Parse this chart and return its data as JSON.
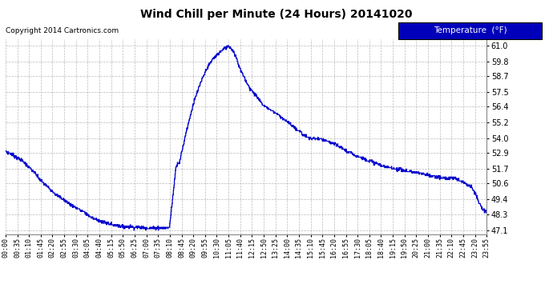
{
  "title": "Wind Chill per Minute (24 Hours) 20141020",
  "copyright": "Copyright 2014 Cartronics.com",
  "legend_label": "Temperature  (°F)",
  "line_color": "#0000cc",
  "background_color": "#ffffff",
  "grid_color": "#aaaaaa",
  "legend_bg": "#0000bb",
  "legend_fg": "#ffffff",
  "yticks": [
    47.1,
    48.3,
    49.4,
    50.6,
    51.7,
    52.9,
    54.0,
    55.2,
    56.4,
    57.5,
    58.7,
    59.8,
    61.0
  ],
  "ymin": 46.8,
  "ymax": 61.5,
  "xtick_labels": [
    "00:00",
    "00:35",
    "01:10",
    "01:45",
    "02:20",
    "02:55",
    "03:30",
    "04:05",
    "04:40",
    "05:15",
    "05:50",
    "06:25",
    "07:00",
    "07:35",
    "08:10",
    "08:45",
    "09:20",
    "09:55",
    "10:30",
    "11:05",
    "11:40",
    "12:15",
    "12:50",
    "13:25",
    "14:00",
    "14:35",
    "15:10",
    "15:45",
    "16:20",
    "16:55",
    "17:30",
    "18:05",
    "18:40",
    "19:15",
    "19:50",
    "20:25",
    "21:00",
    "21:35",
    "22:10",
    "22:45",
    "23:20",
    "23:55"
  ],
  "keypoints": [
    [
      0,
      53.0
    ],
    [
      20,
      52.8
    ],
    [
      50,
      52.3
    ],
    [
      80,
      51.6
    ],
    [
      110,
      50.7
    ],
    [
      150,
      49.8
    ],
    [
      190,
      49.1
    ],
    [
      230,
      48.5
    ],
    [
      260,
      48.0
    ],
    [
      290,
      47.7
    ],
    [
      320,
      47.5
    ],
    [
      345,
      47.4
    ],
    [
      370,
      47.35
    ],
    [
      400,
      47.3
    ],
    [
      420,
      47.25
    ],
    [
      440,
      47.25
    ],
    [
      455,
      47.3
    ],
    [
      470,
      47.25
    ],
    [
      490,
      47.3
    ],
    [
      510,
      52.0
    ],
    [
      520,
      52.2
    ],
    [
      540,
      54.5
    ],
    [
      560,
      56.5
    ],
    [
      580,
      58.0
    ],
    [
      600,
      59.2
    ],
    [
      620,
      60.0
    ],
    [
      640,
      60.5
    ],
    [
      650,
      60.7
    ],
    [
      660,
      60.85
    ],
    [
      667,
      61.0
    ],
    [
      672,
      60.85
    ],
    [
      680,
      60.6
    ],
    [
      690,
      60.1
    ],
    [
      700,
      59.3
    ],
    [
      715,
      58.5
    ],
    [
      730,
      57.8
    ],
    [
      750,
      57.2
    ],
    [
      770,
      56.5
    ],
    [
      790,
      56.2
    ],
    [
      810,
      55.9
    ],
    [
      830,
      55.5
    ],
    [
      850,
      55.1
    ],
    [
      870,
      54.7
    ],
    [
      890,
      54.3
    ],
    [
      910,
      54.0
    ],
    [
      930,
      54.0
    ],
    [
      950,
      53.9
    ],
    [
      970,
      53.7
    ],
    [
      990,
      53.5
    ],
    [
      1010,
      53.2
    ],
    [
      1030,
      52.9
    ],
    [
      1050,
      52.7
    ],
    [
      1070,
      52.5
    ],
    [
      1090,
      52.3
    ],
    [
      1110,
      52.1
    ],
    [
      1130,
      51.9
    ],
    [
      1150,
      51.8
    ],
    [
      1170,
      51.7
    ],
    [
      1190,
      51.6
    ],
    [
      1210,
      51.5
    ],
    [
      1230,
      51.4
    ],
    [
      1250,
      51.3
    ],
    [
      1270,
      51.2
    ],
    [
      1290,
      51.1
    ],
    [
      1310,
      51.0
    ],
    [
      1325,
      51.0
    ],
    [
      1340,
      51.0
    ],
    [
      1355,
      50.9
    ],
    [
      1370,
      50.7
    ],
    [
      1385,
      50.5
    ],
    [
      1395,
      50.3
    ],
    [
      1405,
      49.8
    ],
    [
      1415,
      49.2
    ],
    [
      1425,
      48.7
    ],
    [
      1432,
      48.5
    ],
    [
      1439,
      48.5
    ]
  ]
}
